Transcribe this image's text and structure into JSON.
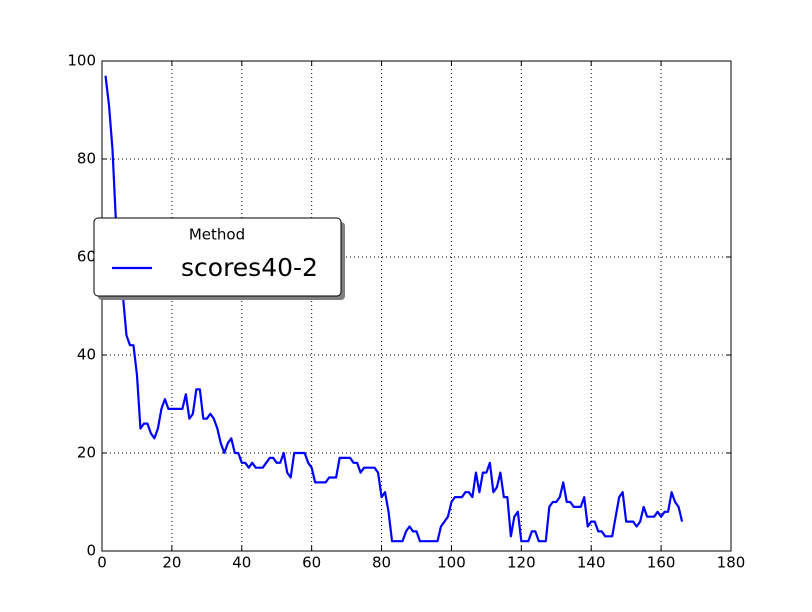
{
  "chart_data": {
    "type": "line",
    "x": [
      1,
      2,
      3,
      4,
      5,
      6,
      7,
      8,
      9,
      10,
      11,
      12,
      13,
      14,
      15,
      16,
      17,
      18,
      19,
      20,
      21,
      22,
      23,
      24,
      25,
      26,
      27,
      28,
      29,
      30,
      31,
      32,
      33,
      34,
      35,
      36,
      37,
      38,
      39,
      40,
      41,
      42,
      43,
      44,
      45,
      46,
      47,
      48,
      49,
      50,
      51,
      52,
      53,
      54,
      55,
      56,
      57,
      58,
      59,
      60,
      61,
      62,
      63,
      64,
      65,
      66,
      67,
      68,
      69,
      70,
      71,
      72,
      73,
      74,
      75,
      76,
      77,
      78,
      79,
      80,
      81,
      82,
      83,
      84,
      85,
      86,
      87,
      88,
      89,
      90,
      91,
      92,
      93,
      94,
      95,
      96,
      97,
      98,
      99,
      100,
      101,
      102,
      103,
      104,
      105,
      106,
      107,
      108,
      109,
      110,
      111,
      112,
      113,
      114,
      115,
      116,
      117,
      118,
      119,
      120,
      121,
      122,
      123,
      124,
      125,
      126,
      127,
      128,
      129,
      130,
      131,
      132,
      133,
      134,
      135,
      136,
      137,
      138,
      139,
      140,
      141,
      142,
      143,
      144,
      145,
      146,
      147,
      148,
      149,
      150,
      151,
      152,
      153,
      154,
      155,
      156,
      157,
      158,
      159,
      160,
      161,
      162,
      163,
      164,
      165,
      166
    ],
    "series": [
      {
        "name": "scores40-2",
        "color": "#0000ff",
        "values": [
          97,
          91,
          82,
          67,
          60,
          52,
          44,
          42,
          42,
          36,
          25,
          26,
          26,
          24,
          23,
          25,
          29,
          31,
          29,
          29,
          29,
          29,
          29,
          32,
          27,
          28,
          33,
          33,
          27,
          27,
          28,
          27,
          25,
          22,
          20,
          22,
          23,
          20,
          20,
          18,
          18,
          17,
          18,
          17,
          17,
          17,
          18,
          19,
          19,
          18,
          18,
          20,
          16,
          15,
          20,
          20,
          20,
          20,
          18,
          17,
          14,
          14,
          14,
          14,
          15,
          15,
          15,
          19,
          19,
          19,
          19,
          18,
          18,
          16,
          17,
          17,
          17,
          17,
          16,
          11,
          12,
          8,
          2,
          2,
          2,
          2,
          4,
          5,
          4,
          4,
          2,
          2,
          2,
          2,
          2,
          2,
          5,
          6,
          7,
          10,
          11,
          11,
          11,
          12,
          12,
          11,
          16,
          12,
          16,
          16,
          18,
          12,
          13,
          16,
          11,
          11,
          3,
          7,
          8,
          2,
          2,
          2,
          4,
          4,
          2,
          2,
          2,
          9,
          10,
          10,
          11,
          14,
          10,
          10,
          9,
          9,
          9,
          11,
          5,
          6,
          6,
          4,
          4,
          3,
          3,
          3,
          7,
          11,
          12,
          6,
          6,
          6,
          5,
          6,
          9,
          7,
          7,
          7,
          8,
          7,
          8,
          8,
          12,
          10,
          9,
          6
        ]
      }
    ],
    "legend_title": "Method",
    "legend_loc": "center left",
    "xlim": [
      0,
      180
    ],
    "xticks": [
      0,
      20,
      40,
      60,
      80,
      100,
      120,
      140,
      160,
      180
    ],
    "ylim": [
      0,
      100
    ],
    "yticks": [
      0,
      20,
      40,
      60,
      80,
      100
    ],
    "grid": true
  }
}
